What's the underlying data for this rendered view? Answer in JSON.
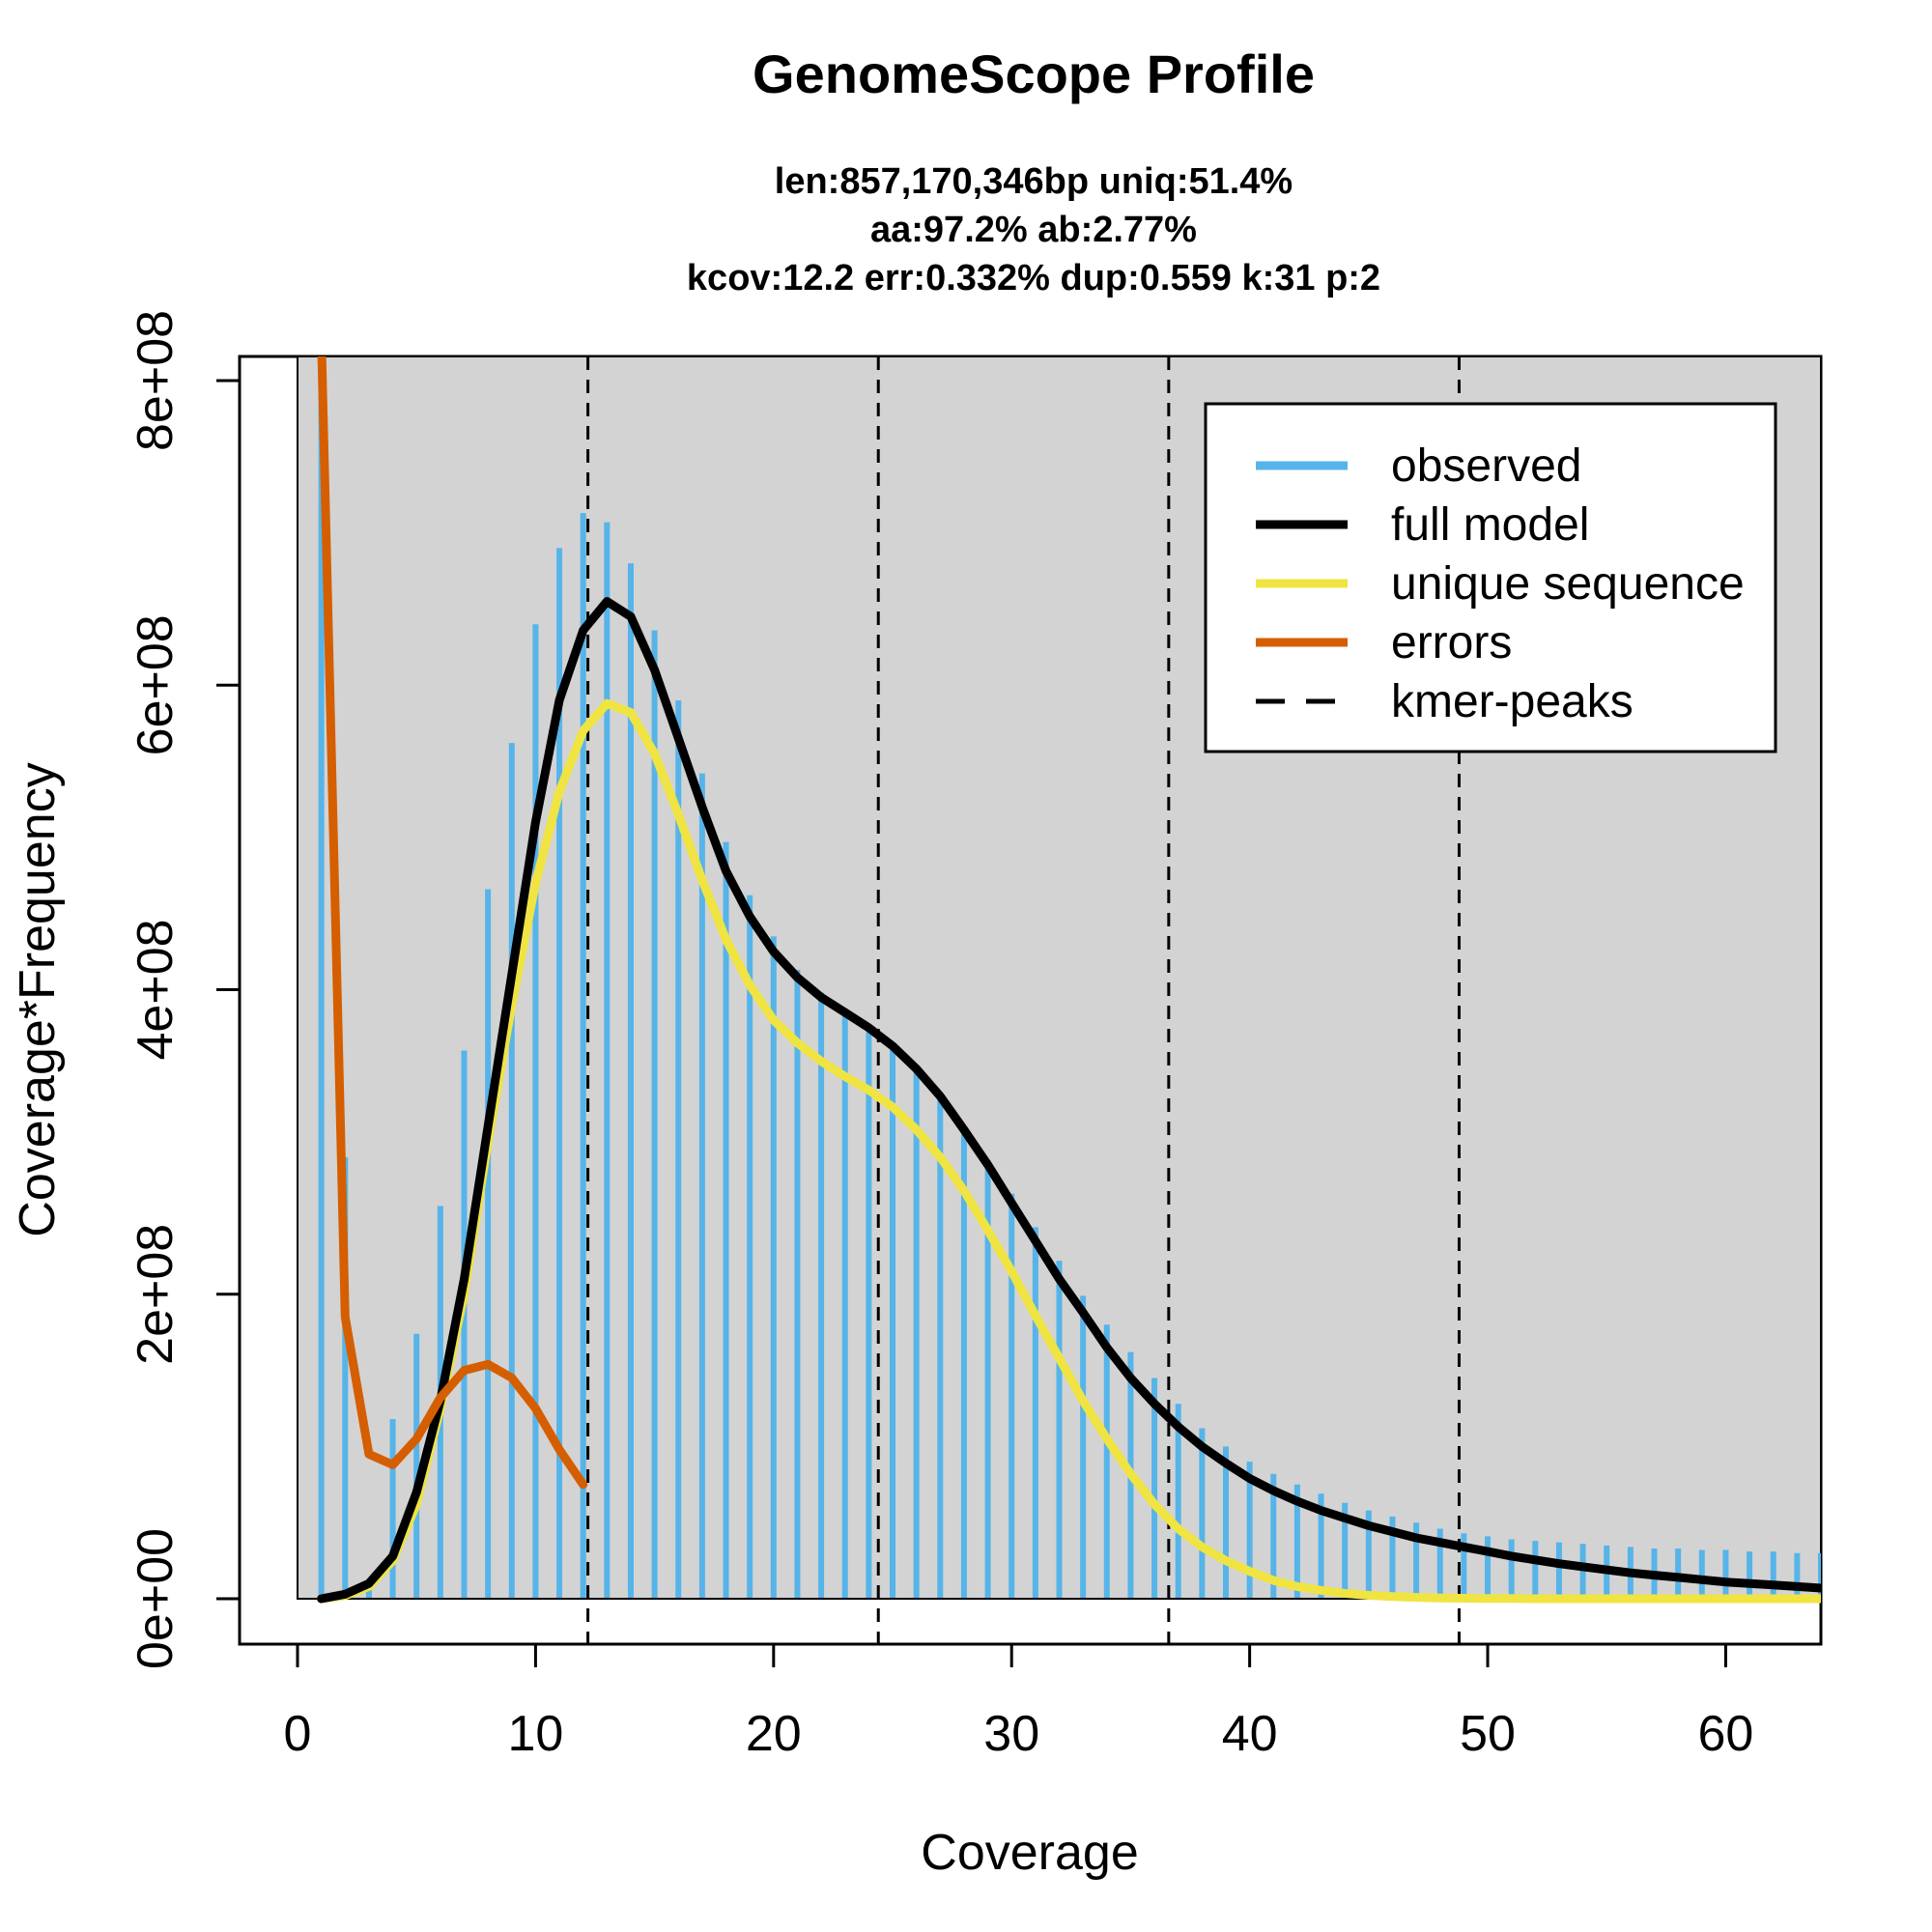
{
  "chart_data": {
    "type": "bar",
    "title": "GenomeScope Profile",
    "subtitle_lines": [
      "len:857,170,346bp uniq:51.4%",
      "aa:97.2% ab:2.77%",
      "kcov:12.2 err:0.332%  dup:0.559  k:31 p:2"
    ],
    "xlabel": "Coverage",
    "ylabel": "Coverage*Frequency",
    "xlim": [
      0,
      64
    ],
    "ylim": [
      0,
      800000000
    ],
    "x_ticks": [
      0,
      10,
      20,
      30,
      40,
      50,
      60
    ],
    "x_tick_labels": [
      "0",
      "10",
      "20",
      "30",
      "40",
      "50",
      "60"
    ],
    "y_ticks": [
      0,
      200000000,
      400000000,
      600000000,
      800000000
    ],
    "y_tick_labels": [
      "0e+00",
      "2e+08",
      "4e+08",
      "6e+08",
      "8e+08"
    ],
    "grid": false,
    "legend_position": "top-right",
    "colors": {
      "observed": "#56b4e9",
      "full_model": "#000000",
      "unique_sequence": "#f0e442",
      "errors": "#d55e00",
      "plot_bg": "#d3d3d3"
    },
    "legend": [
      {
        "key": "observed",
        "label": "observed"
      },
      {
        "key": "full_model",
        "label": "full model"
      },
      {
        "key": "unique_sequence",
        "label": "unique sequence"
      },
      {
        "key": "errors",
        "label": "errors"
      },
      {
        "key": "kmer_peaks",
        "label": "kmer-peaks"
      }
    ],
    "observed": {
      "x": [
        1,
        2,
        3,
        4,
        5,
        6,
        7,
        8,
        9,
        10,
        11,
        12,
        13,
        14,
        15,
        16,
        17,
        18,
        19,
        20,
        21,
        22,
        23,
        24,
        25,
        26,
        27,
        28,
        29,
        30,
        31,
        32,
        33,
        34,
        35,
        36,
        37,
        38,
        39,
        40,
        41,
        42,
        43,
        44,
        45,
        46,
        47,
        48,
        49,
        50,
        51,
        52,
        53,
        54,
        55,
        56,
        57,
        58,
        59,
        60,
        61,
        62,
        63,
        64
      ],
      "y": [
        820000000,
        290000000,
        10000000,
        118000000,
        174000000,
        258000000,
        360000000,
        466000000,
        562000000,
        640000000,
        690000000,
        713000000,
        707000000,
        680000000,
        636000000,
        590000000,
        542000000,
        497000000,
        462000000,
        435000000,
        413000000,
        398000000,
        386000000,
        375000000,
        362000000,
        348000000,
        330000000,
        310000000,
        288000000,
        266000000,
        244000000,
        222000000,
        199000000,
        180000000,
        162000000,
        145000000,
        128000000,
        112000000,
        100000000,
        90000000,
        82000000,
        75000000,
        69000000,
        63000000,
        58000000,
        54000000,
        50000000,
        46000000,
        43000000,
        41000000,
        39000000,
        38000000,
        37000000,
        36000000,
        35000000,
        34000000,
        33000000,
        33000000,
        32000000,
        32000000,
        31000000,
        31000000,
        30000000,
        30000000
      ]
    },
    "full_model": {
      "x": [
        1,
        2,
        3,
        4,
        5,
        6,
        7,
        8,
        9,
        10,
        11,
        12,
        13,
        14,
        15,
        16,
        17,
        18,
        19,
        20,
        21,
        22,
        23,
        24,
        25,
        26,
        27,
        28,
        29,
        30,
        31,
        32,
        33,
        34,
        35,
        36,
        37,
        38,
        39,
        40,
        41,
        42,
        43,
        44,
        45,
        46,
        47,
        48,
        49,
        50,
        51,
        52,
        53,
        54,
        55,
        56,
        57,
        58,
        59,
        60,
        61,
        62,
        63,
        64
      ],
      "y": [
        0,
        3000000,
        10000000,
        28000000,
        70000000,
        130000000,
        210000000,
        310000000,
        410000000,
        510000000,
        590000000,
        636000000,
        655000000,
        645000000,
        610000000,
        565000000,
        520000000,
        478000000,
        448000000,
        425000000,
        408000000,
        395000000,
        385000000,
        375000000,
        363000000,
        348000000,
        330000000,
        308000000,
        285000000,
        260000000,
        235000000,
        210000000,
        188000000,
        165000000,
        145000000,
        128000000,
        113000000,
        100000000,
        89000000,
        79000000,
        71000000,
        64000000,
        58000000,
        53000000,
        48000000,
        44000000,
        40000000,
        37000000,
        34000000,
        31000000,
        28000000,
        25500000,
        23000000,
        21000000,
        19000000,
        17000000,
        15500000,
        14000000,
        12500000,
        11000000,
        10000000,
        9000000,
        8000000,
        7000000
      ]
    },
    "unique_sequence": {
      "x": [
        1,
        2,
        3,
        4,
        5,
        6,
        7,
        8,
        9,
        10,
        11,
        12,
        13,
        14,
        15,
        16,
        17,
        18,
        19,
        20,
        21,
        22,
        23,
        24,
        25,
        26,
        27,
        28,
        29,
        30,
        31,
        32,
        33,
        34,
        35,
        36,
        37,
        38,
        39,
        40,
        41,
        42,
        43,
        44,
        45,
        46,
        47,
        48,
        49,
        50,
        51,
        52,
        53,
        54,
        55,
        56,
        57,
        58,
        59,
        60,
        61,
        62,
        63,
        64
      ],
      "y": [
        0,
        2000000,
        8000000,
        25000000,
        62000000,
        125000000,
        200000000,
        300000000,
        390000000,
        470000000,
        530000000,
        570000000,
        588000000,
        582000000,
        555000000,
        515000000,
        472000000,
        433000000,
        403000000,
        380000000,
        365000000,
        353000000,
        343000000,
        334000000,
        323000000,
        308000000,
        290000000,
        268000000,
        242000000,
        215000000,
        186000000,
        158000000,
        130000000,
        105000000,
        82000000,
        62000000,
        46000000,
        34000000,
        25000000,
        18000000,
        12000000,
        8000000,
        5500000,
        3500000,
        2200000,
        1400000,
        900000,
        500000,
        300000,
        200000,
        100000,
        0,
        0,
        0,
        0,
        0,
        0,
        0,
        0,
        0,
        0,
        0,
        0,
        0
      ]
    },
    "errors": {
      "x": [
        1,
        2,
        3,
        4,
        5,
        6,
        7,
        8,
        9,
        10,
        11,
        12
      ],
      "y": [
        830000000,
        185000000,
        95000000,
        88000000,
        105000000,
        132000000,
        150000000,
        154000000,
        145000000,
        125000000,
        98000000,
        75000000
      ]
    },
    "kmer_peaks": [
      12.2,
      24.4,
      36.6,
      48.8
    ]
  }
}
